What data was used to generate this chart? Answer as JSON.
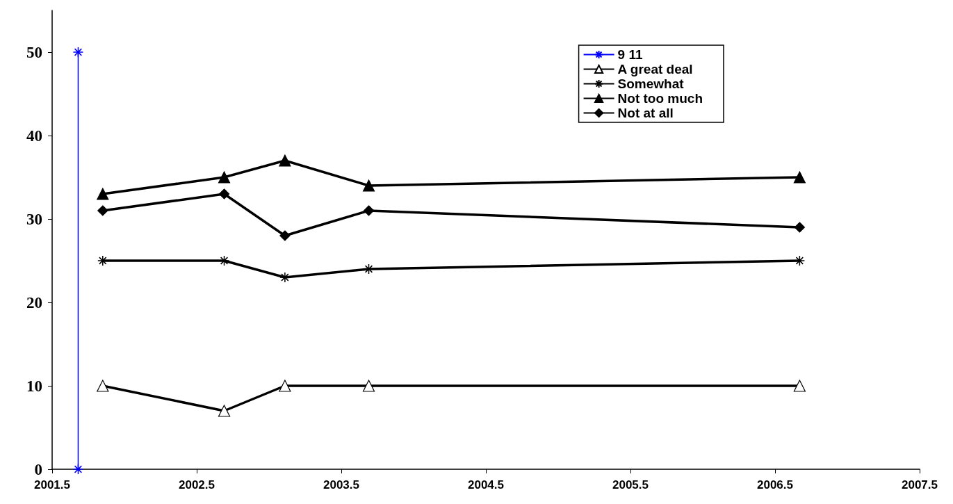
{
  "chart_data": {
    "type": "line",
    "xlim": [
      2001.5,
      2007.5
    ],
    "xticks": [
      2001.5,
      2002.5,
      2003.5,
      2004.5,
      2005.5,
      2006.5,
      2007.5
    ],
    "ylim": [
      0,
      55
    ],
    "yticks": [
      0,
      10,
      20,
      30,
      40,
      50
    ],
    "grid": false,
    "legend": "top right",
    "line_style": "solid",
    "series": [
      {
        "name": "9 11",
        "color": "#0000ff",
        "marker": "cross",
        "x": [
          2001.68,
          2001.68
        ],
        "values": [
          0,
          50
        ]
      },
      {
        "name": "A great deal",
        "color": "#000000",
        "marker": "triangle",
        "x": [
          2001.85,
          2002.69,
          2003.11,
          2003.69,
          2006.67
        ],
        "values": [
          10,
          7,
          10,
          10,
          10
        ]
      },
      {
        "name": "Somewhat",
        "color": "#000000",
        "marker": "cross",
        "x": [
          2001.85,
          2002.69,
          2003.11,
          2003.69,
          2006.67
        ],
        "values": [
          25,
          25,
          23,
          24,
          25
        ]
      },
      {
        "name": "Not too much",
        "color": "#000000",
        "marker": "triangle",
        "x": [
          2001.85,
          2002.69,
          2003.11,
          2003.69,
          2006.67
        ],
        "values": [
          33,
          35,
          37,
          34,
          35
        ]
      },
      {
        "name": "Not at all",
        "color": "#000000",
        "marker": "diamond",
        "x": [
          2001.85,
          2002.69,
          2003.11,
          2003.69,
          2006.67
        ],
        "values": [
          31,
          33,
          28,
          31,
          29
        ]
      }
    ]
  }
}
